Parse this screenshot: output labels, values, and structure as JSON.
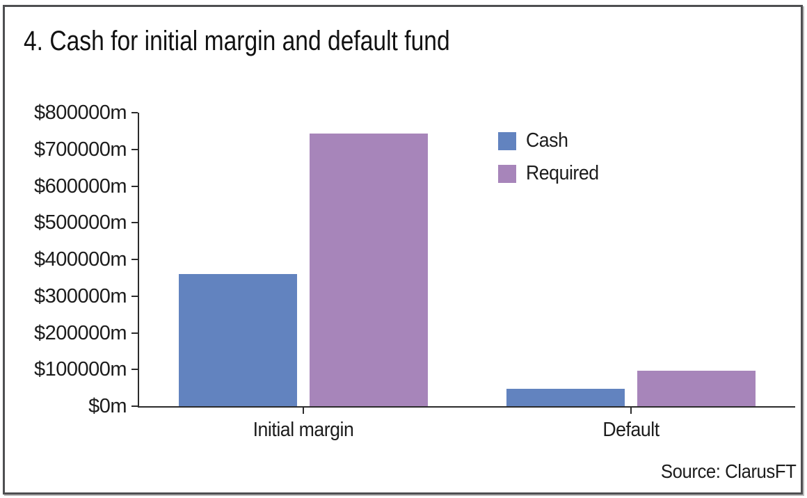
{
  "title": "4. Cash for initial margin and default fund",
  "source": "Source: ClarusFT",
  "colors": {
    "cash": "#6283bf",
    "required": "#a785ba",
    "axis": "#2b2b2b",
    "frame_border": "#4e4f51",
    "text": "#1c1c1c"
  },
  "legend": {
    "items": [
      {
        "label": "Cash",
        "color": "#6283bf"
      },
      {
        "label": "Required",
        "color": "#a785ba"
      }
    ]
  },
  "chart_data": {
    "type": "bar",
    "title": "4. Cash for initial margin and default fund",
    "categories": [
      "Initial margin",
      "Default"
    ],
    "series": [
      {
        "name": "Cash",
        "color": "#6283bf",
        "values": [
          360000,
          48000
        ]
      },
      {
        "name": "Required",
        "color": "#a785ba",
        "values": [
          743000,
          97000
        ]
      }
    ],
    "xlabel": "",
    "ylabel": "",
    "ylim": [
      0,
      800000
    ],
    "y_ticks": [
      {
        "label": "$800000m",
        "value": 800000
      },
      {
        "label": "$700000m",
        "value": 700000
      },
      {
        "label": "$600000m",
        "value": 600000
      },
      {
        "label": "$500000m",
        "value": 500000
      },
      {
        "label": "$400000m",
        "value": 400000
      },
      {
        "label": "$300000m",
        "value": 300000
      },
      {
        "label": "$200000m",
        "value": 200000
      },
      {
        "label": "$100000m",
        "value": 100000
      },
      {
        "label": "$0m",
        "value": 0
      }
    ],
    "grid": false,
    "legend_position": "upper-right-inside",
    "source": "Source: ClarusFT"
  }
}
